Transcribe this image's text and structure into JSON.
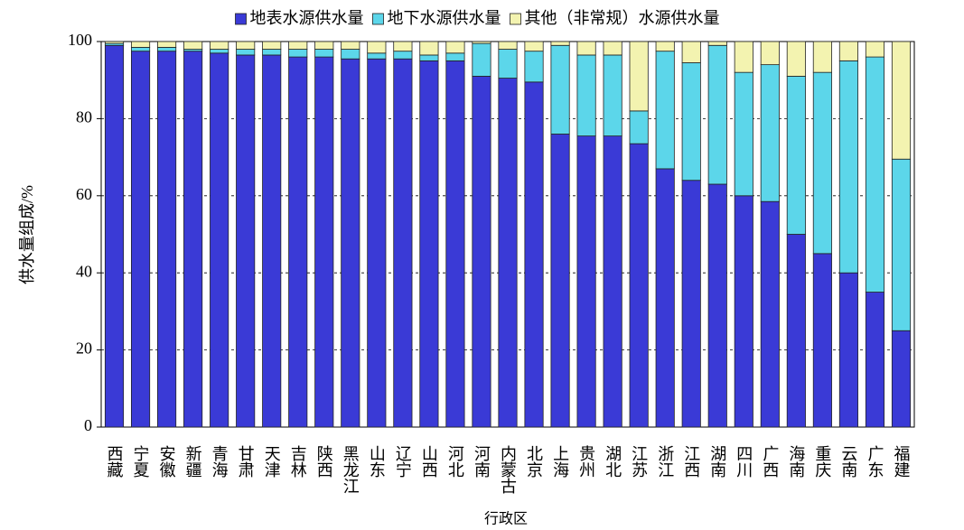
{
  "chart_data": {
    "type": "stacked_bar",
    "y_label": "供水量组成/%",
    "x_label": "行政区",
    "categories": [
      "西藏",
      "宁夏",
      "安徽",
      "新疆",
      "青海",
      "甘肃",
      "天津",
      "吉林",
      "陕西",
      "黑龙江",
      "山东",
      "辽宁",
      "山西",
      "河北",
      "河南",
      "内蒙古",
      "北京",
      "上海",
      "贵州",
      "湖北",
      "江苏",
      "浙江",
      "江西",
      "湖南",
      "四川",
      "广西",
      "海南",
      "重庆",
      "云南",
      "广东",
      "福建"
    ],
    "series": [
      {
        "name": "地表水源供水量",
        "color": "#3a3ad6",
        "values": [
          99,
          97.5,
          97.5,
          97.5,
          97,
          96.5,
          96.5,
          96,
          96,
          95.5,
          95.5,
          95.5,
          95,
          95,
          91,
          90.5,
          89.5,
          76,
          75.5,
          75.5,
          73.5,
          67,
          64,
          63,
          60,
          58.5,
          50,
          45,
          40,
          35,
          25
        ]
      },
      {
        "name": "地下水源供水量",
        "color": "#5cd6ea",
        "values": [
          0.5,
          1,
          1,
          0.5,
          1,
          1.5,
          1.5,
          2,
          2,
          2.5,
          1.5,
          2,
          1.5,
          2,
          8.5,
          7.5,
          8,
          23,
          21,
          21,
          8.5,
          30.5,
          30.5,
          36,
          32,
          35.5,
          41,
          47,
          55,
          61,
          44.5
        ]
      },
      {
        "name": "其他（非常规）水源供水量",
        "color": "#f3f3b0",
        "values": [
          0.5,
          1.5,
          1.5,
          2,
          2,
          2,
          2,
          2,
          2,
          2,
          3,
          2.5,
          3.5,
          3,
          0.5,
          2,
          2.5,
          1,
          3.5,
          3.5,
          18,
          2.5,
          5.5,
          1,
          8,
          6,
          9,
          8,
          5,
          4,
          30.5
        ]
      }
    ],
    "ylim": [
      0,
      100
    ],
    "yticks": [
      0,
      20,
      40,
      60,
      80,
      100
    ],
    "grid": true
  }
}
